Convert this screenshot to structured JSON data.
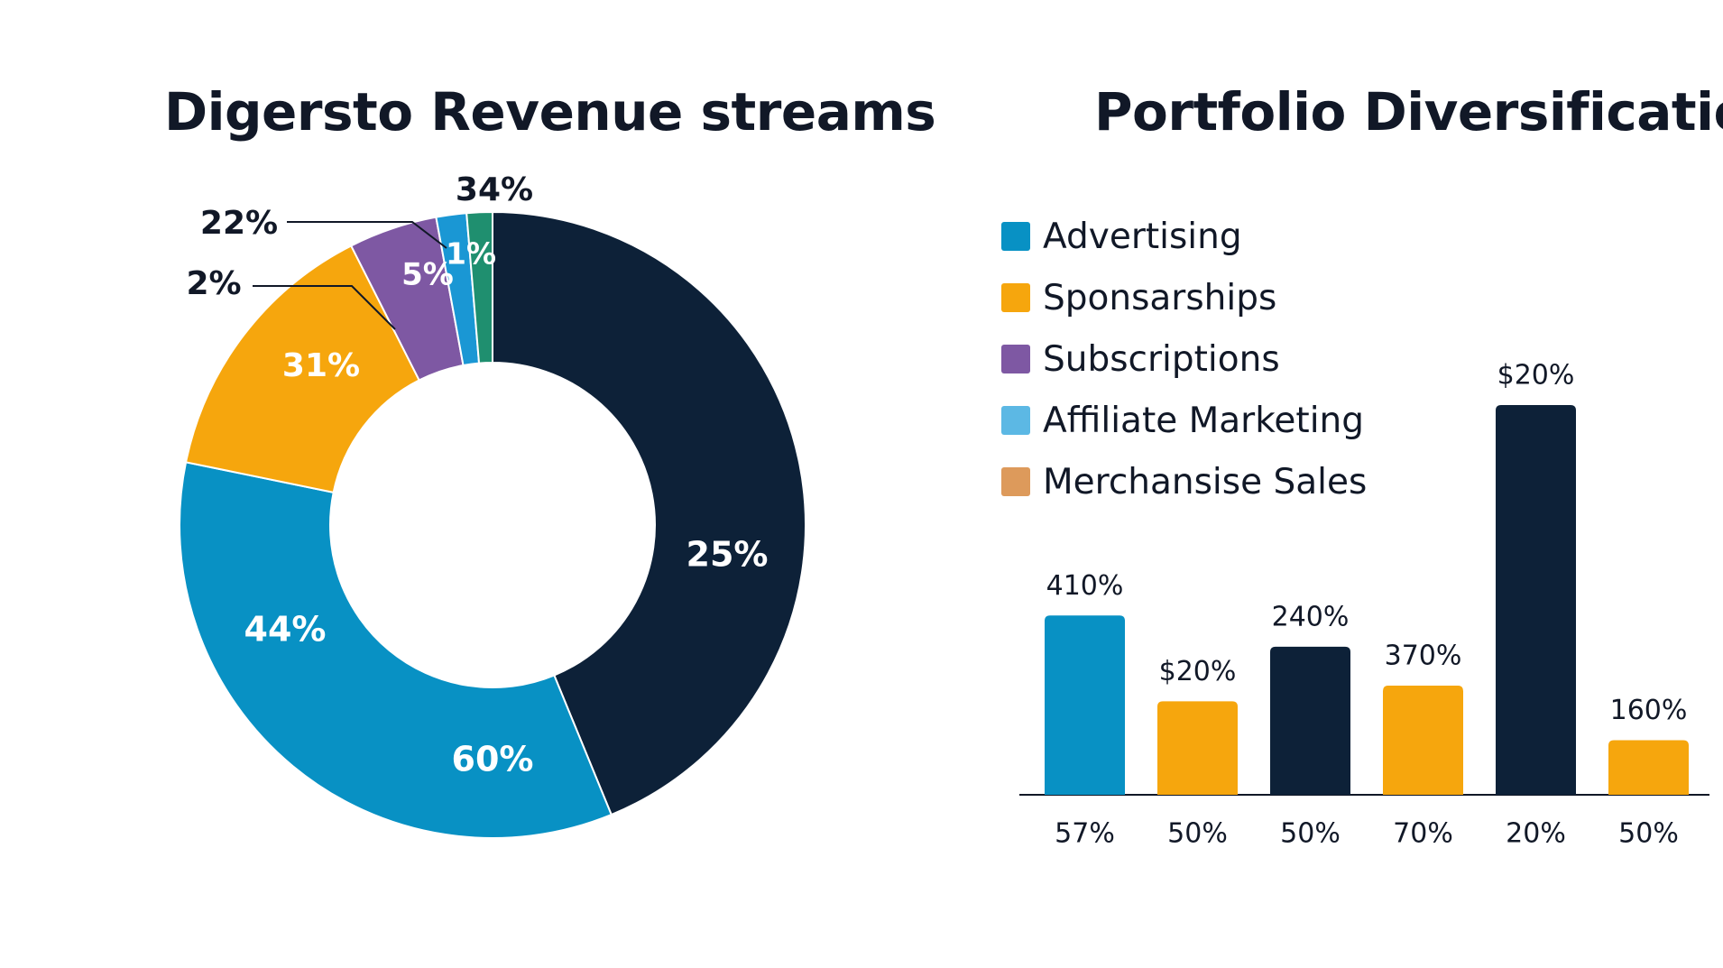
{
  "chart_data": [
    {
      "type": "pie",
      "title": "Digersto Revenue streams",
      "slices": [
        {
          "label": "25%",
          "value": 36.4,
          "color": "#0d2138",
          "label_color": "#ffffff"
        },
        {
          "label": "60%",
          "value": 28.6,
          "color": "#0891c4",
          "label_color": "#ffffff"
        },
        {
          "label": "44%",
          "value": 0,
          "color": "#0891c4",
          "label_color": "#ffffff"
        },
        {
          "label": "31%",
          "value": 11.9,
          "color": "#f6a60d",
          "label_color": "#ffffff"
        },
        {
          "label": "5%",
          "value": 3.8,
          "color": "#7e58a3",
          "label_color": "#ffffff"
        },
        {
          "label": "1%",
          "value": 1.3,
          "color": "#1a97d4",
          "label_color": "#ffffff"
        },
        {
          "label": "34%",
          "value": 1.1,
          "color": "#1f8f6f",
          "label_color": "#111827"
        }
      ],
      "callouts": [
        "22%",
        "2%"
      ]
    },
    {
      "type": "bar",
      "title": "Portfolio Diversification",
      "legend": [
        {
          "label": "Advertising",
          "color": "#0891c4"
        },
        {
          "label": "Sponsarships",
          "color": "#f6a60d"
        },
        {
          "label": "Subscriptions",
          "color": "#7e58a3"
        },
        {
          "label": "Affiliate Marketing",
          "color": "#5cb8e4"
        },
        {
          "label": "Merchansise Sales",
          "color": "#dd9a5b"
        }
      ],
      "categories": [
        "57%",
        "50%",
        "50%",
        "70%",
        "20%",
        "50%"
      ],
      "values": [
        46,
        24,
        38,
        28,
        100,
        14
      ],
      "value_labels": [
        "410%",
        "$20%",
        "240%",
        "370%",
        "$20%",
        "160%"
      ],
      "colors": [
        "#0891c4",
        "#f6a60d",
        "#0d2138",
        "#f6a60d",
        "#0d2138",
        "#f6a60d"
      ],
      "ylim": [
        0,
        100
      ]
    }
  ]
}
